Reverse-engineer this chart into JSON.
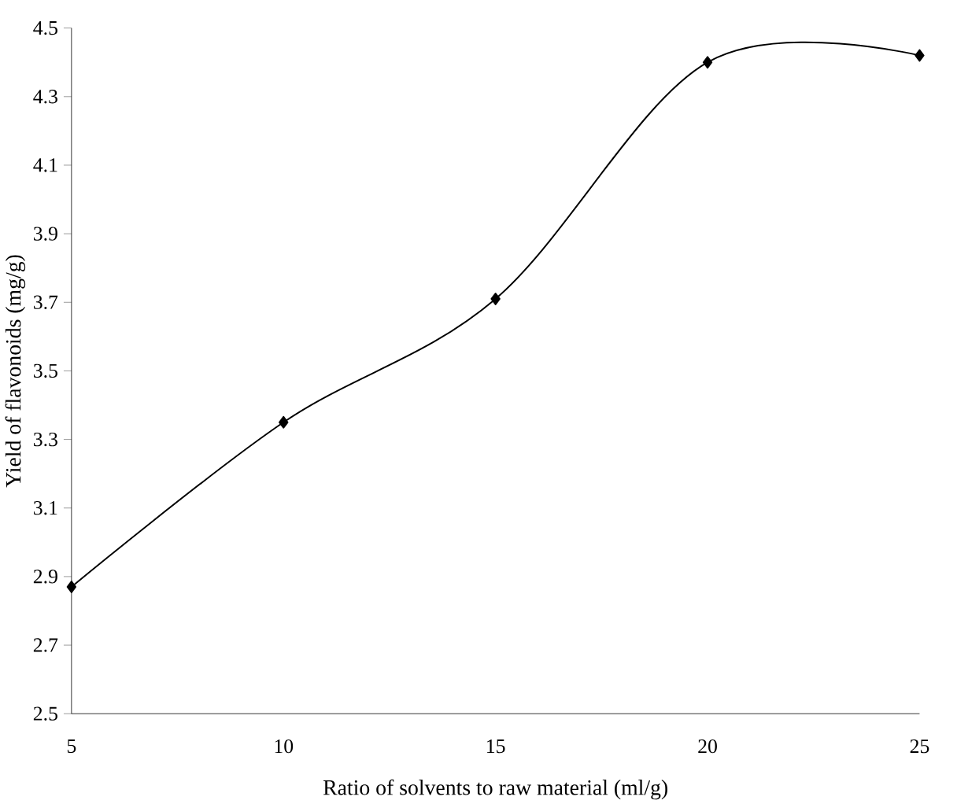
{
  "chart_data": {
    "type": "line",
    "xlabel": "Ratio of solvents to raw material (ml/g)",
    "ylabel": "Yield of flavonoids (mg/g)",
    "x": [
      5,
      10,
      15,
      20,
      25
    ],
    "series": [
      {
        "color": "#000000",
        "values": [
          2.87,
          3.35,
          3.71,
          4.4,
          4.42
        ]
      }
    ],
    "xlim": [
      5,
      25
    ],
    "xticks": [
      5,
      10,
      15,
      20,
      25
    ],
    "ylim": [
      2.5,
      4.5
    ],
    "yticks": [
      2.5,
      2.7,
      2.9,
      3.1,
      3.3,
      3.5,
      3.7,
      3.9,
      4.1,
      4.3,
      4.5
    ],
    "marker": "diamond",
    "line_style": "solid"
  }
}
